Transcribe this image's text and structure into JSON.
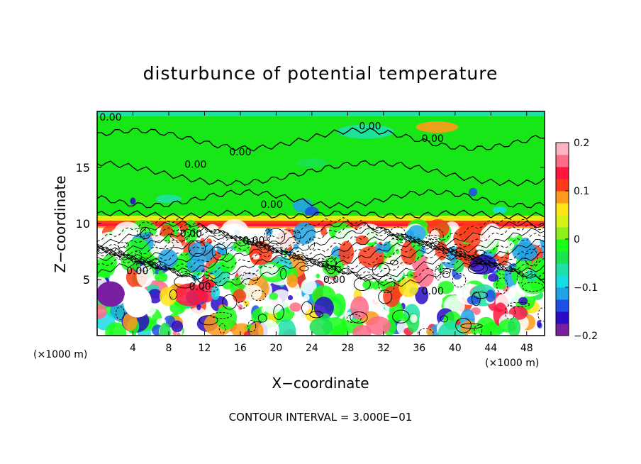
{
  "chart_data": {
    "type": "heatmap",
    "title": "disturbunce of potential temperature",
    "xlabel": "X−coordinate",
    "ylabel": "Z−coordinate",
    "x_unit_left": "(×1000 m)",
    "x_unit_right": "(×1000 m)",
    "footer": "CONTOUR INTERVAL = 3.000E−01",
    "xlim": [
      0,
      50
    ],
    "ylim": [
      0,
      20
    ],
    "x_ticks": [
      "4",
      "8",
      "12",
      "16",
      "20",
      "24",
      "28",
      "32",
      "36",
      "40",
      "44",
      "48"
    ],
    "x_tick_values": [
      4,
      8,
      12,
      16,
      20,
      24,
      28,
      32,
      36,
      40,
      44,
      48
    ],
    "y_ticks": [
      "5",
      "10",
      "15"
    ],
    "y_tick_values": [
      5,
      10,
      15
    ],
    "colorbar": {
      "range": [
        -0.2,
        0.2
      ],
      "tick_labels": [
        "0.2",
        "0.1",
        "0",
        "−0.1",
        "−0.2"
      ],
      "tick_values": [
        0.2,
        0.1,
        0,
        -0.1,
        -0.2
      ],
      "colors": [
        "#7a1fa2",
        "#2a0cc7",
        "#1f4fe6",
        "#1fa3e6",
        "#17dbe6",
        "#1fe0a8",
        "#19e34d",
        "#19ff19",
        "#8cf01b",
        "#d6f018",
        "#ffe41a",
        "#ff9a1a",
        "#ff3a1a",
        "#ff1540",
        "#ff6a86",
        "#ffb3c1"
      ]
    },
    "contour_labels": [
      {
        "text": "0.00",
        "x": 1.5,
        "z": 19.5
      },
      {
        "text": "0.00",
        "x": 30.5,
        "z": 18.7
      },
      {
        "text": "0.00",
        "x": 37.5,
        "z": 17.6
      },
      {
        "text": "0.00",
        "x": 16.0,
        "z": 16.4
      },
      {
        "text": "0.00",
        "x": 11.0,
        "z": 15.3
      },
      {
        "text": "0.00",
        "x": 19.5,
        "z": 11.7
      },
      {
        "text": "0.00",
        "x": 10.5,
        "z": 9.1
      },
      {
        "text": "0.00",
        "x": 17.5,
        "z": 8.5
      },
      {
        "text": "0.00",
        "x": 4.5,
        "z": 5.8
      },
      {
        "text": "0.00",
        "x": 11.5,
        "z": 4.4
      },
      {
        "text": "0.00",
        "x": 26.5,
        "z": 5.0
      },
      {
        "text": "0.00",
        "x": 37.5,
        "z": 4.0
      }
    ]
  }
}
